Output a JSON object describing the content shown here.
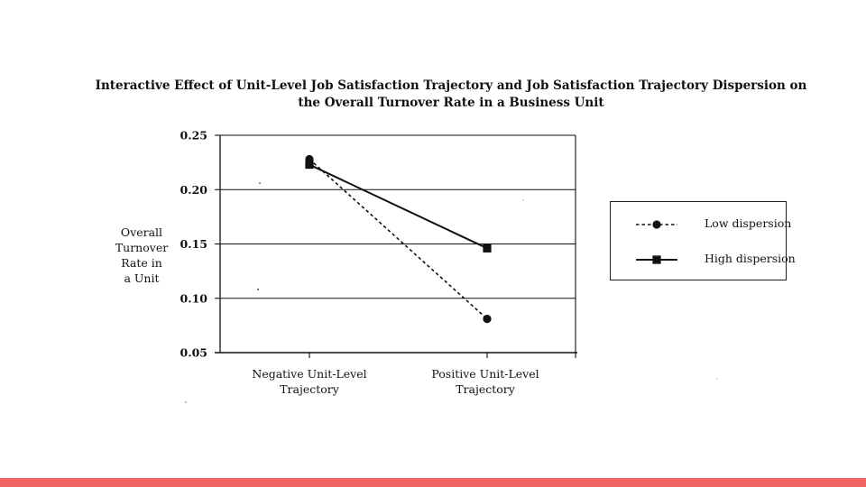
{
  "chart_data": {
    "type": "line",
    "title_lines": [
      "Interactive Effect of Unit-Level Job Satisfaction Trajectory and Job Satisfaction Trajectory Dispersion on",
      "the Overall Turnover Rate in a Business Unit"
    ],
    "ylabel_lines": [
      "Overall",
      "Turnover",
      "Rate in",
      "a Unit"
    ],
    "categories": [
      {
        "lines": [
          "Negative Unit-Level",
          "Trajectory"
        ]
      },
      {
        "lines": [
          "Positive Unit-Level",
          "Trajectory"
        ]
      }
    ],
    "ylim": [
      0.05,
      0.25
    ],
    "yticks": [
      "0.25",
      "0.20",
      "0.15",
      "0.10",
      "0.05"
    ],
    "grid": true,
    "legend_position": "right",
    "series": [
      {
        "name": "Low dispersion",
        "values": [
          0.228,
          0.081
        ],
        "line_style": "dashed",
        "marker": "circle"
      },
      {
        "name": "High dispersion",
        "values": [
          0.223,
          0.146
        ],
        "line_style": "solid",
        "marker": "square"
      }
    ]
  },
  "colors": {
    "ink": "#111111",
    "accent_bar": "#f26464"
  }
}
